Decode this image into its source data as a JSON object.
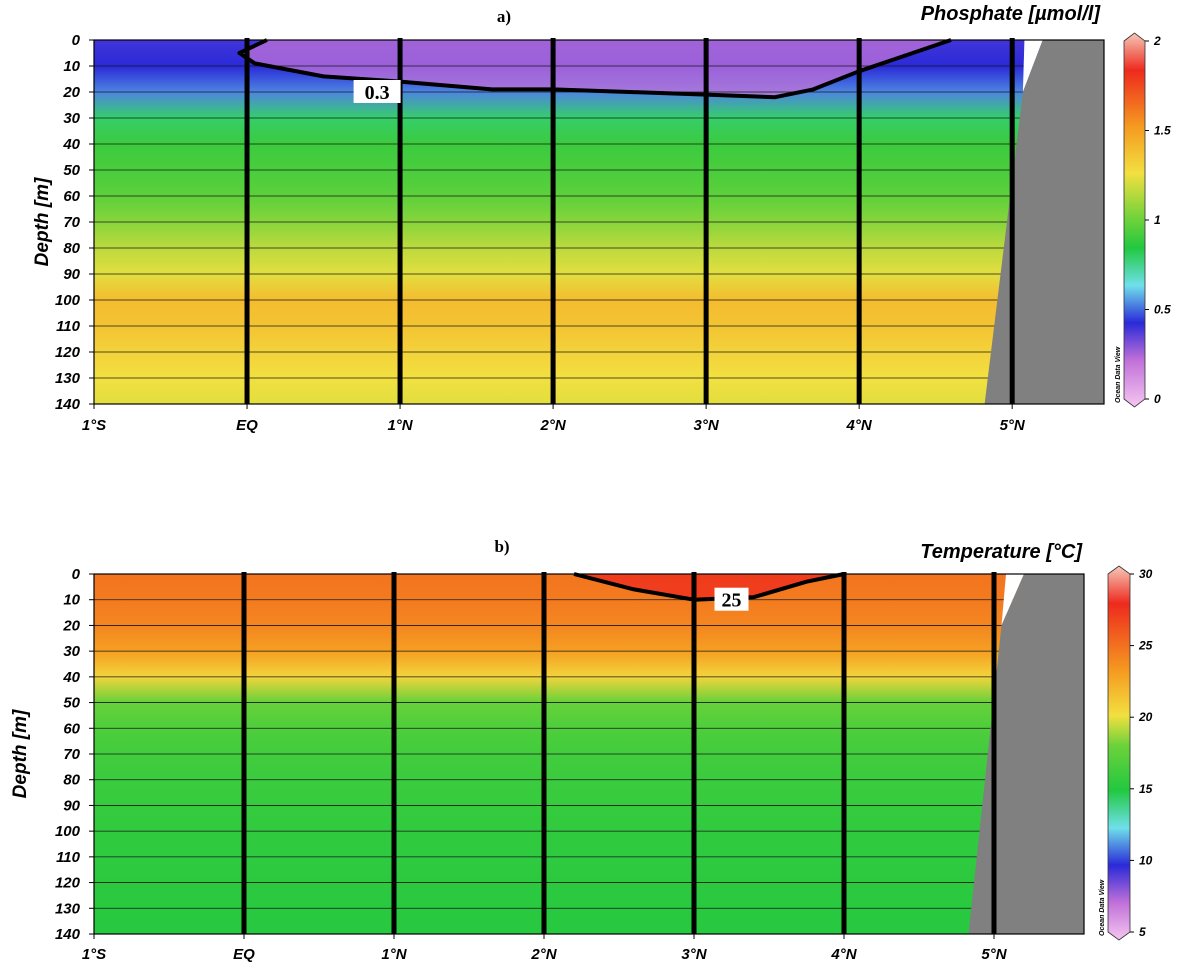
{
  "chart_data": [
    {
      "type": "heatmap",
      "panel_label": "a)",
      "title": "Phosphate [µmol/l]",
      "ylabel": "Depth [m]",
      "xlabel": "",
      "x_ticks": [
        "1°S",
        "EQ",
        "1°N",
        "2°N",
        "3°N",
        "4°N",
        "5°N"
      ],
      "x_tick_values": [
        -1,
        0,
        1,
        2,
        3,
        4,
        5
      ],
      "x_range": [
        -1,
        5.6
      ],
      "y_ticks": [
        0,
        10,
        20,
        30,
        40,
        50,
        60,
        70,
        80,
        90,
        100,
        110,
        120,
        130,
        140
      ],
      "y_range": [
        0,
        140
      ],
      "y_reversed": true,
      "grid": "horizontal",
      "station_latitudes": [
        0,
        1,
        2,
        3,
        4,
        5
      ],
      "colorbar": {
        "min": 0,
        "max": 2,
        "ticks": [
          "2",
          "1.5",
          "1",
          "0.5",
          "0"
        ],
        "tick_values": [
          2,
          1.5,
          1,
          0.5,
          0
        ],
        "stops": [
          {
            "value": 0,
            "color": "#f5c6f0"
          },
          {
            "value": 0.25,
            "color": "#c070d8"
          },
          {
            "value": 0.45,
            "color": "#2a2ad8"
          },
          {
            "value": 0.65,
            "color": "#6fe0ea"
          },
          {
            "value": 0.85,
            "color": "#22c840"
          },
          {
            "value": 1.0,
            "color": "#6cd23a"
          },
          {
            "value": 1.25,
            "color": "#f2e040"
          },
          {
            "value": 1.5,
            "color": "#f59a20"
          },
          {
            "value": 1.8,
            "color": "#ee2a1e"
          },
          {
            "value": 2,
            "color": "#f6c8b8"
          }
        ]
      },
      "field_by_depth": [
        {
          "depth": 0,
          "value": 0.42
        },
        {
          "depth": 10,
          "value": 0.45
        },
        {
          "depth": 20,
          "value": 0.55
        },
        {
          "depth": 30,
          "value": 0.8
        },
        {
          "depth": 40,
          "value": 0.9
        },
        {
          "depth": 50,
          "value": 0.93
        },
        {
          "depth": 60,
          "value": 0.97
        },
        {
          "depth": 70,
          "value": 1.05
        },
        {
          "depth": 80,
          "value": 1.15
        },
        {
          "depth": 90,
          "value": 1.22
        },
        {
          "depth": 100,
          "value": 1.38
        },
        {
          "depth": 110,
          "value": 1.35
        },
        {
          "depth": 120,
          "value": 1.3
        },
        {
          "depth": 130,
          "value": 1.25
        },
        {
          "depth": 140,
          "value": 1.22
        }
      ],
      "contour": {
        "label": "0.3",
        "value": 0.3,
        "label_position": {
          "lat": 0.85,
          "depth": 20
        },
        "points": [
          {
            "lat": 0.13,
            "depth": 0
          },
          {
            "lat": -0.05,
            "depth": 5
          },
          {
            "lat": 0.05,
            "depth": 9
          },
          {
            "lat": 0.5,
            "depth": 14
          },
          {
            "lat": 1.0,
            "depth": 16
          },
          {
            "lat": 1.6,
            "depth": 19
          },
          {
            "lat": 2.0,
            "depth": 19
          },
          {
            "lat": 2.5,
            "depth": 20
          },
          {
            "lat": 3.0,
            "depth": 21
          },
          {
            "lat": 3.45,
            "depth": 22
          },
          {
            "lat": 3.7,
            "depth": 19
          },
          {
            "lat": 4.0,
            "depth": 12
          },
          {
            "lat": 4.3,
            "depth": 6
          },
          {
            "lat": 4.6,
            "depth": 0
          }
        ]
      },
      "seafloor": [
        {
          "lat": 5.2,
          "depth": 0
        },
        {
          "lat": 5.07,
          "depth": 20
        },
        {
          "lat": 4.82,
          "depth": 140
        }
      ]
    },
    {
      "type": "heatmap",
      "panel_label": "b)",
      "title": "Temperature [°C]",
      "ylabel": "Depth [m]",
      "xlabel": "",
      "x_ticks": [
        "1°S",
        "EQ",
        "1°N",
        "2°N",
        "3°N",
        "4°N",
        "5°N"
      ],
      "x_tick_values": [
        -1,
        0,
        1,
        2,
        3,
        4,
        5
      ],
      "x_range": [
        -1,
        5.6
      ],
      "y_ticks": [
        0,
        10,
        20,
        30,
        40,
        50,
        60,
        70,
        80,
        90,
        100,
        110,
        120,
        130,
        140
      ],
      "y_range": [
        0,
        140
      ],
      "y_reversed": true,
      "grid": "horizontal",
      "station_latitudes": [
        0,
        1,
        2,
        3,
        4,
        5
      ],
      "colorbar": {
        "min": 5,
        "max": 30,
        "ticks": [
          "30",
          "25",
          "20",
          "15",
          "10",
          "5"
        ],
        "tick_values": [
          30,
          25,
          20,
          15,
          10,
          5
        ],
        "stops": [
          {
            "value": 5,
            "color": "#f5c6f0"
          },
          {
            "value": 7.5,
            "color": "#c070d8"
          },
          {
            "value": 10,
            "color": "#2a2ad8"
          },
          {
            "value": 12.5,
            "color": "#6fe0ea"
          },
          {
            "value": 15,
            "color": "#22c840"
          },
          {
            "value": 18,
            "color": "#6cd23a"
          },
          {
            "value": 20,
            "color": "#f2e040"
          },
          {
            "value": 23,
            "color": "#f59a20"
          },
          {
            "value": 27.5,
            "color": "#ee2a1e"
          },
          {
            "value": 30,
            "color": "#f6c8b8"
          }
        ]
      },
      "field_by_depth": [
        {
          "depth": 0,
          "value": 24.5
        },
        {
          "depth": 10,
          "value": 24.3
        },
        {
          "depth": 20,
          "value": 23.8
        },
        {
          "depth": 30,
          "value": 22.8
        },
        {
          "depth": 40,
          "value": 20.5
        },
        {
          "depth": 50,
          "value": 17.8
        },
        {
          "depth": 60,
          "value": 16.8
        },
        {
          "depth": 70,
          "value": 16.3
        },
        {
          "depth": 80,
          "value": 16.0
        },
        {
          "depth": 90,
          "value": 15.8
        },
        {
          "depth": 100,
          "value": 15.6
        },
        {
          "depth": 110,
          "value": 15.5
        },
        {
          "depth": 120,
          "value": 15.4
        },
        {
          "depth": 130,
          "value": 15.3
        },
        {
          "depth": 140,
          "value": 15.2
        }
      ],
      "contour": {
        "label": "25",
        "value": 25,
        "label_position": {
          "lat": 3.25,
          "depth": 10
        },
        "points": [
          {
            "lat": 2.2,
            "depth": 0
          },
          {
            "lat": 2.6,
            "depth": 6
          },
          {
            "lat": 3.0,
            "depth": 10
          },
          {
            "lat": 3.4,
            "depth": 9
          },
          {
            "lat": 3.75,
            "depth": 3
          },
          {
            "lat": 4.0,
            "depth": 0
          }
        ]
      },
      "seafloor": [
        {
          "lat": 5.2,
          "depth": 0
        },
        {
          "lat": 5.05,
          "depth": 20
        },
        {
          "lat": 4.83,
          "depth": 140
        }
      ]
    }
  ],
  "credit": "Ocean Data View"
}
